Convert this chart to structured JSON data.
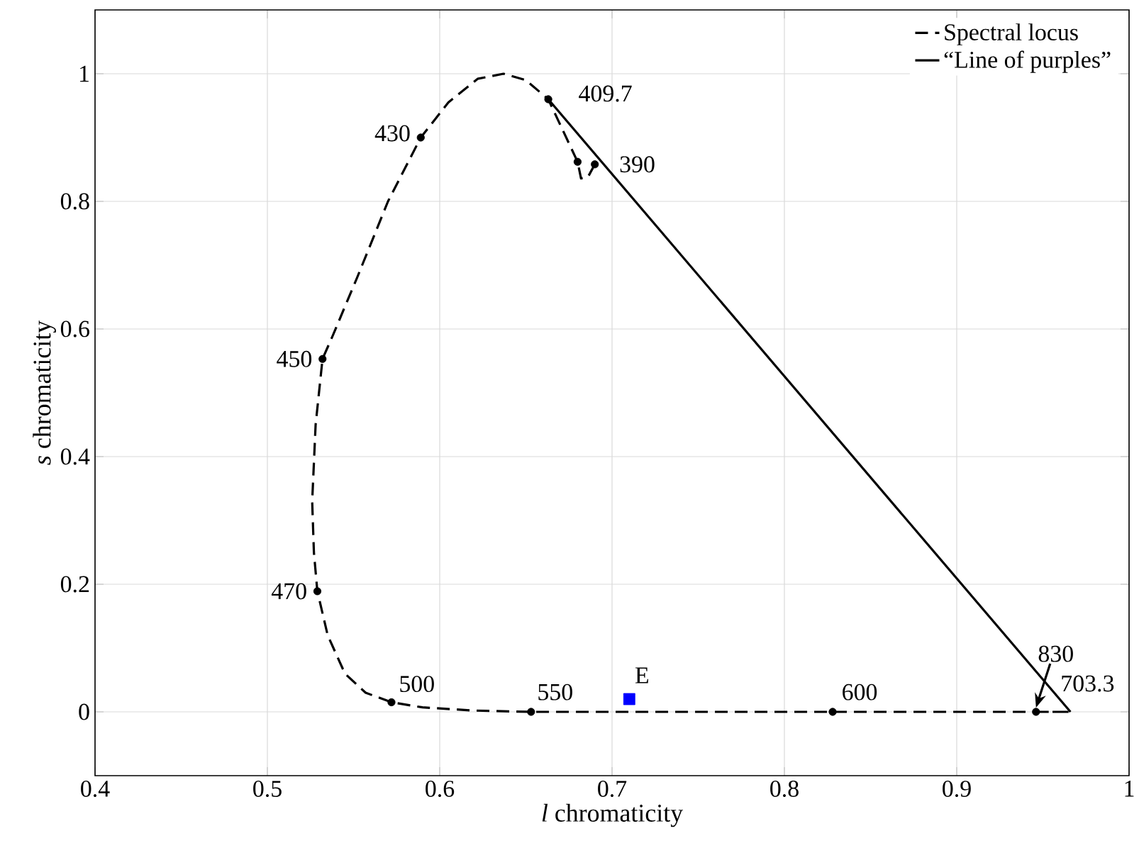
{
  "chart_data": {
    "type": "line",
    "xlabel": "*l* chromaticity",
    "ylabel": "*s* chromaticity",
    "xlim": [
      0.4,
      1
    ],
    "ylim": [
      -0.1,
      1.1
    ],
    "xticks": [
      0.4,
      0.5,
      0.6,
      0.7,
      0.8,
      0.9,
      1
    ],
    "yticks": [
      0,
      0.2,
      0.4,
      0.6,
      0.8,
      1
    ],
    "grid": true,
    "legend": "top right",
    "series": [
      {
        "name": "Spectral locus",
        "color": "#000000",
        "line_style": "dashed",
        "marker": "none",
        "x": [
          0.69,
          0.686,
          0.682,
          0.68,
          0.663,
          0.65,
          0.637,
          0.622,
          0.605,
          0.589,
          0.57,
          0.552,
          0.538,
          0.532,
          0.528,
          0.526,
          0.527,
          0.529,
          0.535,
          0.545,
          0.557,
          0.572,
          0.59,
          0.62,
          0.653,
          0.75,
          0.828,
          0.9,
          0.946,
          0.966,
          0.946
        ],
        "values": [
          0.858,
          0.838,
          0.836,
          0.862,
          0.96,
          0.99,
          1.0,
          0.992,
          0.955,
          0.9,
          0.8,
          0.68,
          0.59,
          0.553,
          0.45,
          0.33,
          0.25,
          0.189,
          0.12,
          0.06,
          0.03,
          0.015,
          0.007,
          0.002,
          0,
          0,
          0,
          0,
          0,
          0,
          0
        ]
      },
      {
        "name": "“Line of purples”",
        "color": "#000000",
        "line_style": "solid",
        "marker": "none",
        "x": [
          0.663,
          0.966
        ],
        "values": [
          0.96,
          0
        ]
      },
      {
        "type": "scatter",
        "color": "#000000",
        "marker": "circle",
        "x": [
          0.589,
          0.663,
          0.69,
          0.68,
          0.532,
          0.529,
          0.572,
          0.653,
          0.828,
          0.946
        ],
        "values": [
          0.9,
          0.96,
          0.858,
          0.862,
          0.553,
          0.189,
          0.015,
          0,
          0,
          0
        ]
      },
      {
        "type": "scatter",
        "name": "E",
        "color": "#0000ff",
        "marker": "square",
        "x": [
          0.71
        ],
        "values": [
          0.02
        ]
      }
    ],
    "annotations": [
      {
        "text": "430",
        "x": 0.589,
        "y": 0.9
      },
      {
        "text": "409.7",
        "x": 0.663,
        "y": 0.96
      },
      {
        "text": "390",
        "x": 0.69,
        "y": 0.858
      },
      {
        "text": "450",
        "x": 0.532,
        "y": 0.553
      },
      {
        "text": "470",
        "x": 0.529,
        "y": 0.189
      },
      {
        "text": "500",
        "x": 0.572,
        "y": 0.015
      },
      {
        "text": "550",
        "x": 0.653,
        "y": 0
      },
      {
        "text": "600",
        "x": 0.828,
        "y": 0
      },
      {
        "text": "830",
        "x": 0.946,
        "y": 0
      },
      {
        "text": "703.3",
        "x": 0.966,
        "y": 0
      }
    ]
  }
}
